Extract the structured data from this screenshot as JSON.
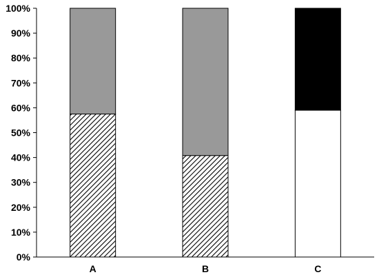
{
  "chart_data": {
    "type": "bar",
    "stacked": true,
    "categories": [
      "A",
      "B",
      "C"
    ],
    "series": [
      {
        "pattern": "hatch",
        "values": [
          57.5,
          40.8,
          null
        ]
      },
      {
        "fill": "#999999",
        "values": [
          42.5,
          59.2,
          null
        ]
      },
      {
        "fill": "#ffffff",
        "values": [
          null,
          null,
          59
        ]
      },
      {
        "fill": "#000000",
        "values": [
          null,
          null,
          41
        ]
      }
    ],
    "title": "",
    "xlabel": "",
    "ylabel": "",
    "ylim": [
      0,
      100
    ],
    "yticks": [
      "0%",
      "10%",
      "20%",
      "30%",
      "40%",
      "50%",
      "60%",
      "70%",
      "80%",
      "90%",
      "100%"
    ],
    "grid": false,
    "legend": "none"
  }
}
